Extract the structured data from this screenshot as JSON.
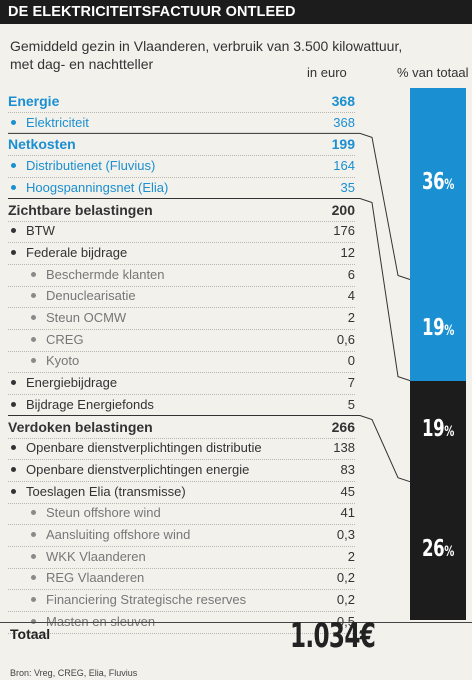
{
  "header": {
    "title": "DE ELEKTRICITEITSFACTUUR ONTLEED",
    "subtitle": "Gemiddeld gezin in Vlaanderen, verbruik van 3.500 kilowattuur, met dag- en nachtteller",
    "col_euro": "in euro",
    "col_pct": "% van totaal"
  },
  "colors": {
    "blue": "#1a8fd1",
    "dark": "#1c1c1c",
    "background": "#f3f1ec"
  },
  "chart_data": {
    "type": "table",
    "title": "DE ELEKTRICITEITSFACTUUR ONTLEED",
    "rows": [
      {
        "label": "Energie",
        "value": "368",
        "level": 0,
        "blue": true
      },
      {
        "label": "Elektriciteit",
        "value": "368",
        "level": 1,
        "blue": true
      },
      {
        "label": "Netkosten",
        "value": "199",
        "level": 0,
        "blue": true
      },
      {
        "label": "Distributienet (Fluvius)",
        "value": "164",
        "level": 1,
        "blue": true
      },
      {
        "label": "Hoogspanningsnet (Elia)",
        "value": "35",
        "level": 1,
        "blue": true
      },
      {
        "label": "Zichtbare belastingen",
        "value": "200",
        "level": 0,
        "blue": false
      },
      {
        "label": "BTW",
        "value": "176",
        "level": 1,
        "blue": false
      },
      {
        "label": "Federale bijdrage",
        "value": "12",
        "level": 1,
        "blue": false
      },
      {
        "label": "Beschermde klanten",
        "value": "6",
        "level": 2,
        "blue": false
      },
      {
        "label": "Denuclearisatie",
        "value": "4",
        "level": 2,
        "blue": false
      },
      {
        "label": "Steun OCMW",
        "value": "2",
        "level": 2,
        "blue": false
      },
      {
        "label": "CREG",
        "value": "0,6",
        "level": 2,
        "blue": false
      },
      {
        "label": "Kyoto",
        "value": "0",
        "level": 2,
        "blue": false
      },
      {
        "label": "Energiebijdrage",
        "value": "7",
        "level": 1,
        "blue": false
      },
      {
        "label": "Bijdrage Energiefonds",
        "value": "5",
        "level": 1,
        "blue": false
      },
      {
        "label": "Verdoken belastingen",
        "value": "266",
        "level": 0,
        "blue": false
      },
      {
        "label": "Openbare dienstverplichtingen distributie",
        "value": "138",
        "level": 1,
        "blue": false
      },
      {
        "label": "Openbare dienstverplichtingen energie",
        "value": "83",
        "level": 1,
        "blue": false
      },
      {
        "label": "Toeslagen Elia (transmisse)",
        "value": "45",
        "level": 1,
        "blue": false
      },
      {
        "label": "Steun offshore wind",
        "value": "41",
        "level": 2,
        "blue": false
      },
      {
        "label": "Aansluiting offshore wind",
        "value": "0,3",
        "level": 2,
        "blue": false
      },
      {
        "label": "WKK Vlaanderen",
        "value": "2",
        "level": 2,
        "blue": false
      },
      {
        "label": "REG Vlaanderen",
        "value": "0,2",
        "level": 2,
        "blue": false
      },
      {
        "label": "Financiering Strategische reserves",
        "value": "0,2",
        "level": 2,
        "blue": false
      },
      {
        "label": "Masten en sleuven",
        "value": "0,5",
        "level": 2,
        "blue": false
      }
    ],
    "shares": [
      {
        "label": "36%",
        "value": 36,
        "number": "36",
        "sign": "%",
        "color": "#1a8fd1"
      },
      {
        "label": "19%",
        "value": 19,
        "number": "19",
        "sign": "%",
        "color": "#1a8fd1"
      },
      {
        "label": "19%",
        "value": 19,
        "number": "19",
        "sign": "%",
        "color": "#1c1c1c"
      },
      {
        "label": "26%",
        "value": 26,
        "number": "26",
        "sign": "%",
        "color": "#1c1c1c"
      }
    ],
    "total_label": "Totaal",
    "total_value": "1.034€"
  },
  "footer": {
    "source": "Bron: Vreg, CREG, Elia, Fluvius"
  }
}
